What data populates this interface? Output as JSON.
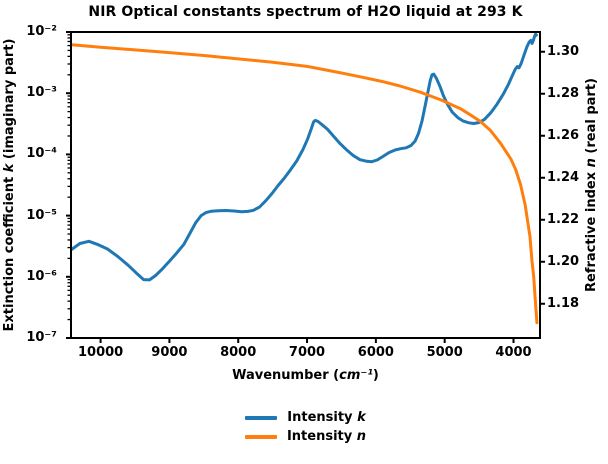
{
  "title": "NIR Optical constants spectrum of H2O liquid at 293 K",
  "axes": {
    "x_label": {
      "prefix": "Wavenumber (",
      "math": "cm⁻¹",
      "suffix": ")"
    },
    "left_label": {
      "prefix": "Extinction coefficient ",
      "math": "k",
      "suffix": " (imaginary part)"
    },
    "right_label": {
      "prefix": "Refractive index ",
      "math": "n",
      "suffix": " (real part)"
    }
  },
  "legend": {
    "entries": [
      {
        "prefix": "Intensity ",
        "math": "k",
        "color": "#1f77b4"
      },
      {
        "prefix": "Intensity ",
        "math": "n",
        "color": "#ff7f0e"
      }
    ]
  },
  "chart_data": {
    "type": "line",
    "title": "NIR Optical constants spectrum of H2O liquid at 293 K",
    "xlabel": "Wavenumber (cm⁻¹)",
    "ylabel_left": "Extinction coefficient k (imaginary part)",
    "ylabel_right": "Refractive index n (real part)",
    "x_inverted": true,
    "grid": false,
    "legend_position": "below-center",
    "xlim": [
      10430,
      3615
    ],
    "ylim_left": [
      1e-07,
      0.01
    ],
    "left_scale": "log",
    "ylim_right": [
      1.1637,
      1.3094
    ],
    "x_ticks": [
      10000,
      9000,
      8000,
      7000,
      6000,
      5000,
      4000
    ],
    "x_tick_labels": [
      "10000",
      "9000",
      "8000",
      "7000",
      "6000",
      "5000",
      "4000"
    ],
    "left_ticks": [
      0.01,
      0.001,
      0.0001,
      1e-05,
      1e-06,
      1e-07
    ],
    "left_tick_labels": [
      "10⁻²",
      "10⁻³",
      "10⁻⁴",
      "10⁻⁵",
      "10⁻⁶",
      "10⁻⁷"
    ],
    "right_ticks": [
      1.3,
      1.28,
      1.26,
      1.24,
      1.22,
      1.2,
      1.18
    ],
    "right_tick_labels": [
      "1.30",
      "1.28",
      "1.26",
      "1.24",
      "1.22",
      "1.20",
      "1.18"
    ],
    "series": [
      {
        "name": "Intensity k",
        "axis": "left",
        "color": "#1f77b4",
        "linewidth": 3,
        "points": [
          [
            10420,
            2.8e-06
          ],
          [
            10300,
            3.5e-06
          ],
          [
            10170,
            3.8e-06
          ],
          [
            10050,
            3.4e-06
          ],
          [
            9900,
            2.85e-06
          ],
          [
            9750,
            2.15e-06
          ],
          [
            9600,
            1.55e-06
          ],
          [
            9480,
            1.15e-06
          ],
          [
            9375,
            9e-07
          ],
          [
            9290,
            8.9e-07
          ],
          [
            9200,
            1.05e-06
          ],
          [
            9100,
            1.35e-06
          ],
          [
            9000,
            1.8e-06
          ],
          [
            8900,
            2.4e-06
          ],
          [
            8790,
            3.4e-06
          ],
          [
            8700,
            5.2e-06
          ],
          [
            8620,
            7.6e-06
          ],
          [
            8540,
            1e-05
          ],
          [
            8470,
            1.12e-05
          ],
          [
            8390,
            1.18e-05
          ],
          [
            8290,
            1.2e-05
          ],
          [
            8180,
            1.21e-05
          ],
          [
            8060,
            1.19e-05
          ],
          [
            7950,
            1.16e-05
          ],
          [
            7860,
            1.17e-05
          ],
          [
            7780,
            1.22e-05
          ],
          [
            7690,
            1.38e-05
          ],
          [
            7600,
            1.75e-05
          ],
          [
            7510,
            2.3e-05
          ],
          [
            7420,
            3.1e-05
          ],
          [
            7330,
            4.1e-05
          ],
          [
            7240,
            5.6e-05
          ],
          [
            7150,
            7.8e-05
          ],
          [
            7060,
            0.00012
          ],
          [
            6990,
            0.00018
          ],
          [
            6940,
            0.00026
          ],
          [
            6905,
            0.00034
          ],
          [
            6880,
            0.00036
          ],
          [
            6840,
            0.000345
          ],
          [
            6780,
            0.000305
          ],
          [
            6700,
            0.000255
          ],
          [
            6610,
            0.000195
          ],
          [
            6520,
            0.00015
          ],
          [
            6430,
            0.00012
          ],
          [
            6330,
            9.6e-05
          ],
          [
            6230,
            8.2e-05
          ],
          [
            6130,
            7.7e-05
          ],
          [
            6060,
            7.6e-05
          ],
          [
            5980,
            8.1e-05
          ],
          [
            5900,
            9.2e-05
          ],
          [
            5810,
            0.000107
          ],
          [
            5720,
            0.000118
          ],
          [
            5640,
            0.000124
          ],
          [
            5560,
            0.000128
          ],
          [
            5490,
            0.00014
          ],
          [
            5430,
            0.000165
          ],
          [
            5380,
            0.00022
          ],
          [
            5330,
            0.00035
          ],
          [
            5280,
            0.00065
          ],
          [
            5240,
            0.0011
          ],
          [
            5210,
            0.0016
          ],
          [
            5185,
            0.002
          ],
          [
            5160,
            0.00205
          ],
          [
            5120,
            0.00175
          ],
          [
            5070,
            0.0013
          ],
          [
            5020,
            0.00092
          ],
          [
            4960,
            0.00066
          ],
          [
            4890,
            0.00049
          ],
          [
            4810,
            0.0004
          ],
          [
            4730,
            0.00035
          ],
          [
            4650,
            0.000328
          ],
          [
            4575,
            0.00032
          ],
          [
            4500,
            0.000332
          ],
          [
            4420,
            0.000375
          ],
          [
            4330,
            0.00048
          ],
          [
            4240,
            0.00066
          ],
          [
            4150,
            0.00096
          ],
          [
            4080,
            0.00135
          ],
          [
            4020,
            0.0019
          ],
          [
            3975,
            0.00245
          ],
          [
            3945,
            0.00272
          ],
          [
            3920,
            0.0026
          ],
          [
            3890,
            0.00305
          ],
          [
            3850,
            0.0041
          ],
          [
            3805,
            0.0057
          ],
          [
            3770,
            0.0069
          ],
          [
            3748,
            0.0073
          ],
          [
            3730,
            0.0065
          ],
          [
            3712,
            0.0073
          ],
          [
            3694,
            0.0085
          ],
          [
            3680,
            0.0092
          ],
          [
            3668,
            0.0089
          ]
        ]
      },
      {
        "name": "Intensity n",
        "axis": "right",
        "color": "#ff7f0e",
        "linewidth": 3,
        "points": [
          [
            10420,
            1.3033
          ],
          [
            10000,
            1.3021
          ],
          [
            9500,
            1.3009
          ],
          [
            9000,
            1.2996
          ],
          [
            8500,
            1.2982
          ],
          [
            8000,
            1.2966
          ],
          [
            7500,
            1.295
          ],
          [
            7000,
            1.293
          ],
          [
            6800,
            1.2918
          ],
          [
            6500,
            1.2899
          ],
          [
            6200,
            1.2879
          ],
          [
            5900,
            1.2858
          ],
          [
            5650,
            1.2837
          ],
          [
            5350,
            1.2807
          ],
          [
            5050,
            1.277
          ],
          [
            4770,
            1.2729
          ],
          [
            4630,
            1.27
          ],
          [
            4480,
            1.2668
          ],
          [
            4340,
            1.2627
          ],
          [
            4190,
            1.2565
          ],
          [
            4040,
            1.249
          ],
          [
            3970,
            1.244
          ],
          [
            3900,
            1.237
          ],
          [
            3830,
            1.227
          ],
          [
            3760,
            1.2119
          ],
          [
            3733,
            1.2008
          ],
          [
            3707,
            1.1929
          ],
          [
            3683,
            1.1818
          ],
          [
            3668,
            1.1746
          ],
          [
            3660,
            1.171
          ]
        ]
      }
    ]
  }
}
